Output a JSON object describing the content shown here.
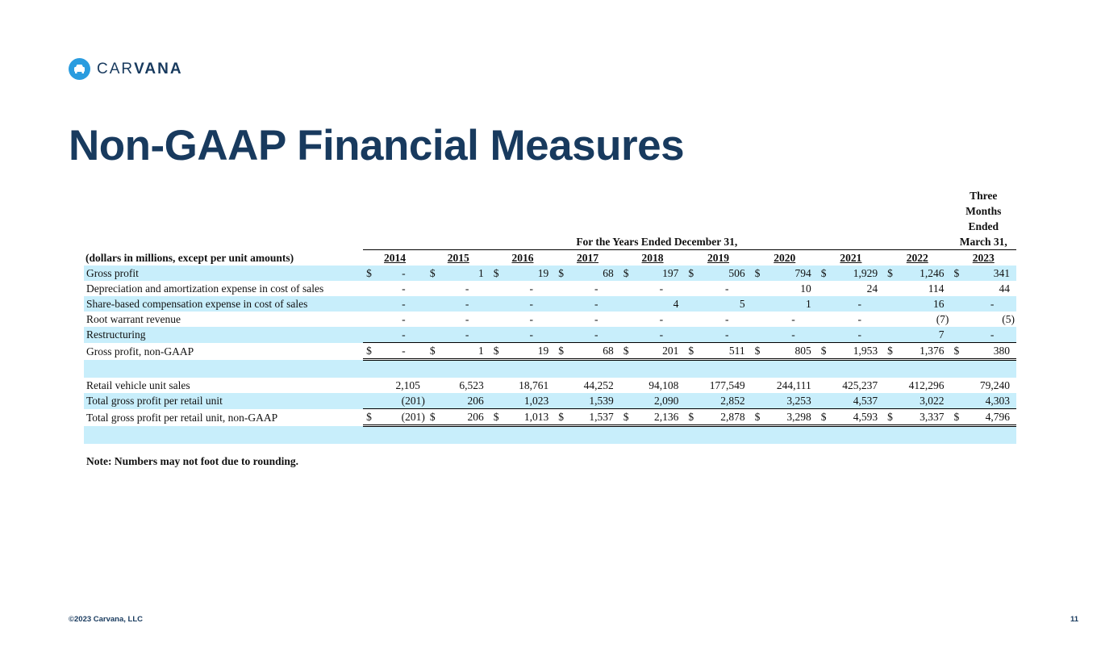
{
  "logo": {
    "light": "CAR",
    "bold": "VANA"
  },
  "title": "Non-GAAP Financial Measures",
  "table": {
    "unit_note": "(dollars in millions, except per unit amounts)",
    "period_header": "For the Years Ended December 31,",
    "interim_header": [
      "Three",
      "Months",
      "Ended",
      "March 31,"
    ],
    "columns": [
      "2014",
      "2015",
      "2016",
      "2017",
      "2018",
      "2019",
      "2020",
      "2021",
      "2022",
      "2023"
    ],
    "rows": [
      {
        "label": "Gross profit",
        "currency": "$",
        "cells": [
          "-",
          "1",
          "19",
          "68",
          "197",
          "506",
          "794",
          "1,929",
          "1,246",
          "341"
        ]
      },
      {
        "label": "Depreciation and amortization expense in cost of sales",
        "cells": [
          "-",
          "-",
          "-",
          "-",
          "-",
          "-",
          "10",
          "24",
          "114",
          "44"
        ]
      },
      {
        "label": "Share-based compensation expense in cost of sales",
        "cells": [
          "-",
          "-",
          "-",
          "-",
          "4",
          "5",
          "1",
          "-",
          "16",
          "-"
        ]
      },
      {
        "label": "Root warrant revenue",
        "cells": [
          "-",
          "-",
          "-",
          "-",
          "-",
          "-",
          "-",
          "-",
          "(7)",
          "(5)"
        ]
      },
      {
        "label": "Restructuring",
        "cells": [
          "-",
          "-",
          "-",
          "-",
          "-",
          "-",
          "-",
          "-",
          "7",
          "-"
        ]
      },
      {
        "label": "Gross profit, non-GAAP",
        "currency": "$",
        "cells": [
          "-",
          "1",
          "19",
          "68",
          "201",
          "511",
          "805",
          "1,953",
          "1,376",
          "380"
        ]
      },
      {
        "label": "Retail vehicle unit sales",
        "cells": [
          "2,105",
          "6,523",
          "18,761",
          "44,252",
          "94,108",
          "177,549",
          "244,111",
          "425,237",
          "412,296",
          "79,240"
        ]
      },
      {
        "label": "Total gross profit per retail unit",
        "cells": [
          "(201)",
          "206",
          "1,023",
          "1,539",
          "2,090",
          "2,852",
          "3,253",
          "4,537",
          "3,022",
          "4,303"
        ]
      },
      {
        "label": "Total gross profit per retail unit, non-GAAP",
        "currency": "$",
        "cells": [
          "(201)",
          "206",
          "1,013",
          "1,537",
          "2,136",
          "2,878",
          "3,298",
          "4,593",
          "3,337",
          "4,796"
        ]
      }
    ],
    "note": "Note: Numbers may not foot due to rounding."
  },
  "footer": {
    "copyright": "©2023 Carvana, LLC",
    "page_number": "11"
  }
}
